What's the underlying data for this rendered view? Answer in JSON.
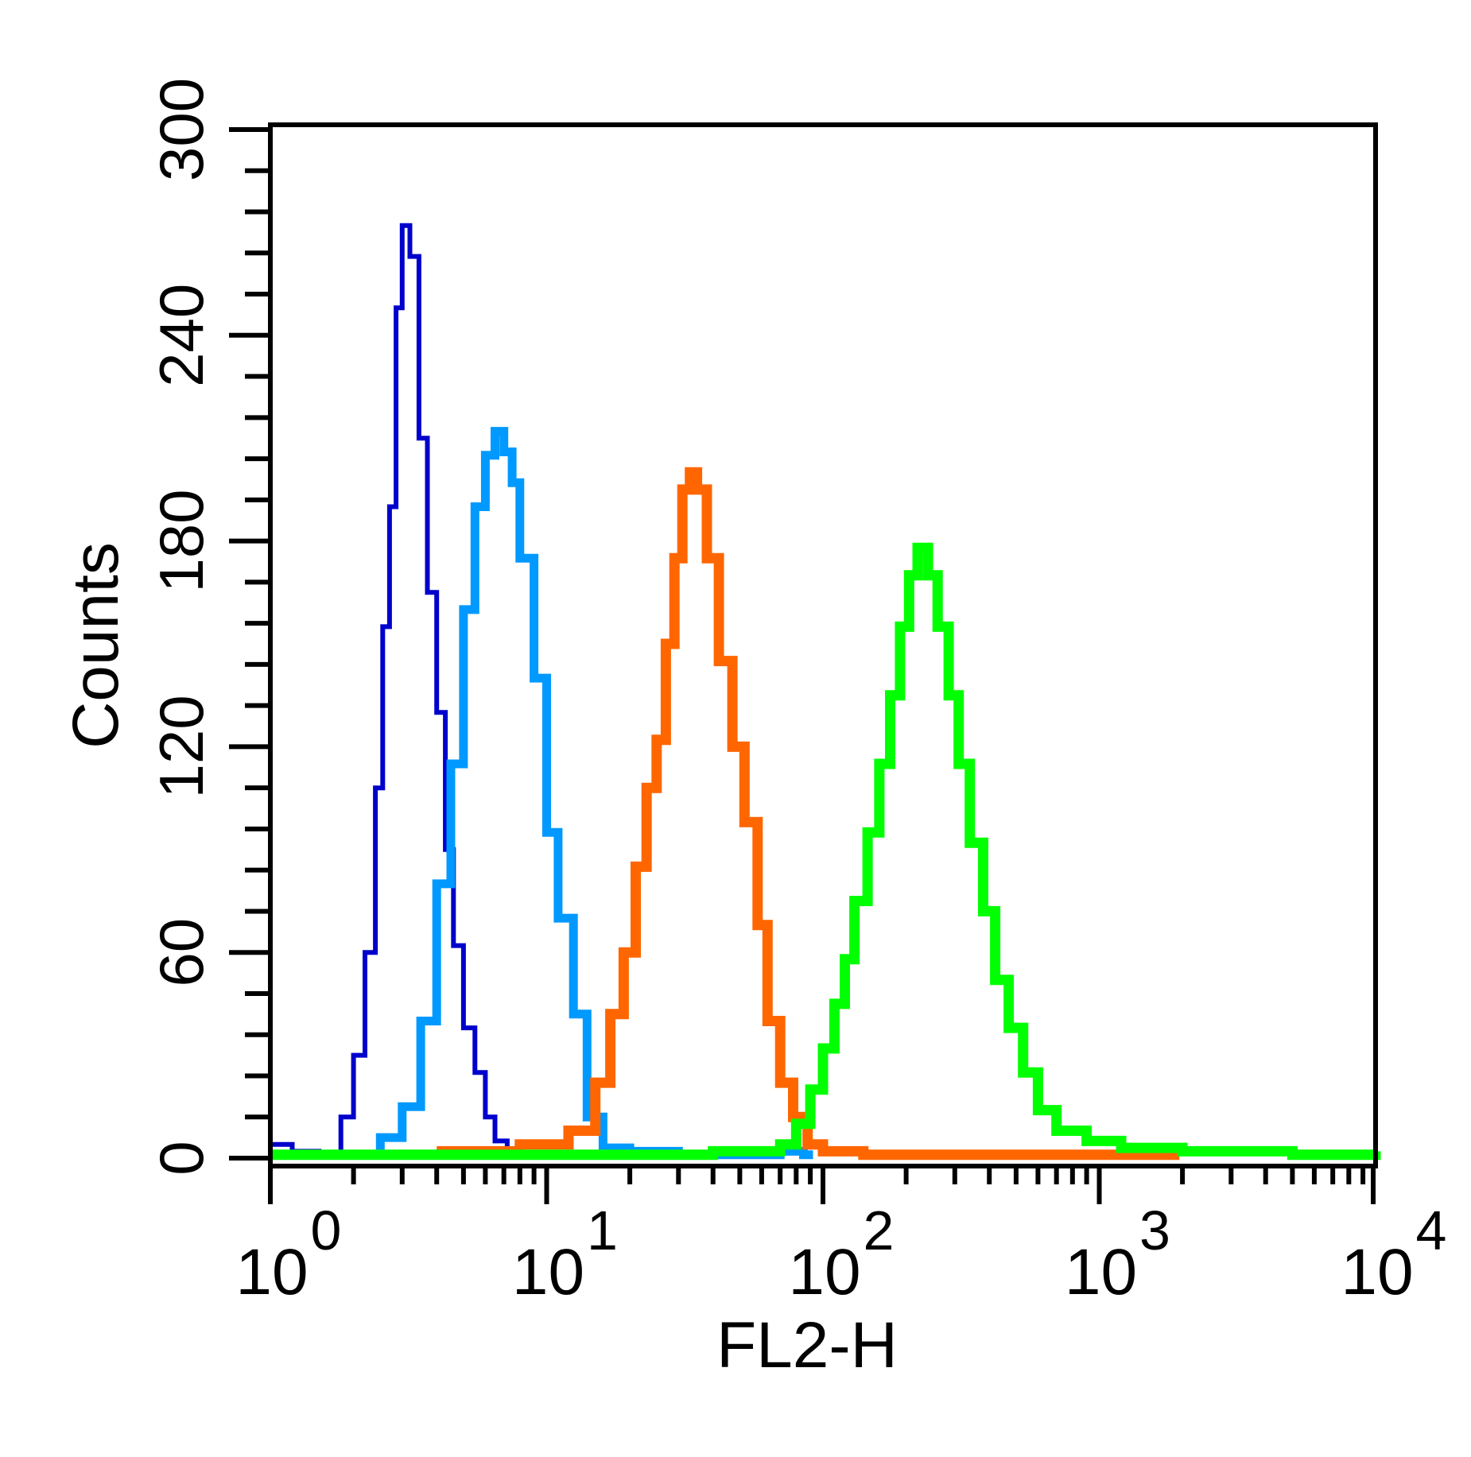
{
  "chart_data": {
    "type": "line",
    "title": "",
    "xlabel": "FL2-H",
    "ylabel": "Counts",
    "x_scale": "log",
    "xlim": [
      1,
      10000
    ],
    "ylim": [
      0,
      300
    ],
    "x_ticks": [
      {
        "value": 1,
        "base": "10",
        "exp": "0"
      },
      {
        "value": 10,
        "base": "10",
        "exp": "1"
      },
      {
        "value": 100,
        "base": "10",
        "exp": "2"
      },
      {
        "value": 1000,
        "base": "10",
        "exp": "3"
      },
      {
        "value": 10000,
        "base": "10",
        "exp": "4"
      }
    ],
    "y_ticks": [
      "0",
      "60",
      "120",
      "180",
      "240",
      "300"
    ],
    "grid": false,
    "legend": "none",
    "series": [
      {
        "color": "#0000cc",
        "style": "thin",
        "x": [
          1,
          1.2,
          1.5,
          1.8,
          2.0,
          2.2,
          2.4,
          2.55,
          2.7,
          2.85,
          3.0,
          3.2,
          3.45,
          3.7,
          4.0,
          4.3,
          4.6,
          5.0,
          5.5,
          6.0,
          6.5,
          7.2,
          8.0
        ],
        "y": [
          4,
          2,
          1,
          12,
          30,
          60,
          108,
          155,
          190,
          248,
          272,
          263,
          210,
          165,
          130,
          90,
          62,
          38,
          25,
          12,
          5,
          2,
          1
        ]
      },
      {
        "color": "#0099ff",
        "style": "medium",
        "x": [
          1.7,
          2.5,
          3.0,
          3.5,
          4.0,
          4.5,
          5.0,
          5.5,
          6.0,
          6.5,
          7.0,
          7.5,
          8.0,
          9.0,
          10.0,
          11.0,
          12.5,
          14.0,
          16.0,
          20.0,
          30.0,
          70.0,
          85.0
        ],
        "y": [
          1,
          6,
          15,
          40,
          80,
          115,
          160,
          190,
          205,
          212,
          206,
          197,
          175,
          140,
          95,
          70,
          42,
          12,
          3,
          2,
          1,
          2,
          1
        ]
      },
      {
        "color": "#ff6600",
        "style": "thick",
        "x": [
          4.0,
          8.0,
          12.0,
          15.0,
          17.0,
          19.0,
          21.0,
          23.0,
          25.0,
          27.0,
          29.0,
          31.0,
          33.0,
          35.0,
          38.0,
          42.0,
          47.0,
          52.0,
          58.0,
          63.0,
          70.0,
          78.0,
          88.0,
          100.0,
          140.0,
          400.0,
          1800.0
        ],
        "y": [
          2,
          4,
          8,
          22,
          42,
          60,
          85,
          108,
          122,
          150,
          175,
          195,
          200,
          195,
          175,
          145,
          120,
          98,
          68,
          40,
          22,
          12,
          4,
          2,
          1,
          1,
          1
        ]
      },
      {
        "color": "#00ff00",
        "style": "thick",
        "x": [
          1.0,
          10.0,
          40.0,
          70.0,
          80.0,
          90.0,
          100.0,
          110.0,
          120.0,
          130.0,
          145.0,
          160.0,
          175.0,
          190.0,
          205.0,
          220.0,
          240.0,
          260.0,
          285.0,
          310.0,
          340.0,
          380.0,
          420.0,
          470.0,
          530.0,
          600.0,
          700.0,
          900.0,
          1200.0,
          2000.0,
          5000.0,
          10000.0
        ],
        "y": [
          1,
          1,
          2,
          4,
          10,
          20,
          32,
          45,
          58,
          75,
          95,
          115,
          135,
          155,
          170,
          178,
          170,
          155,
          135,
          115,
          92,
          72,
          52,
          38,
          25,
          14,
          8,
          5,
          3,
          2,
          1,
          2
        ]
      }
    ]
  }
}
